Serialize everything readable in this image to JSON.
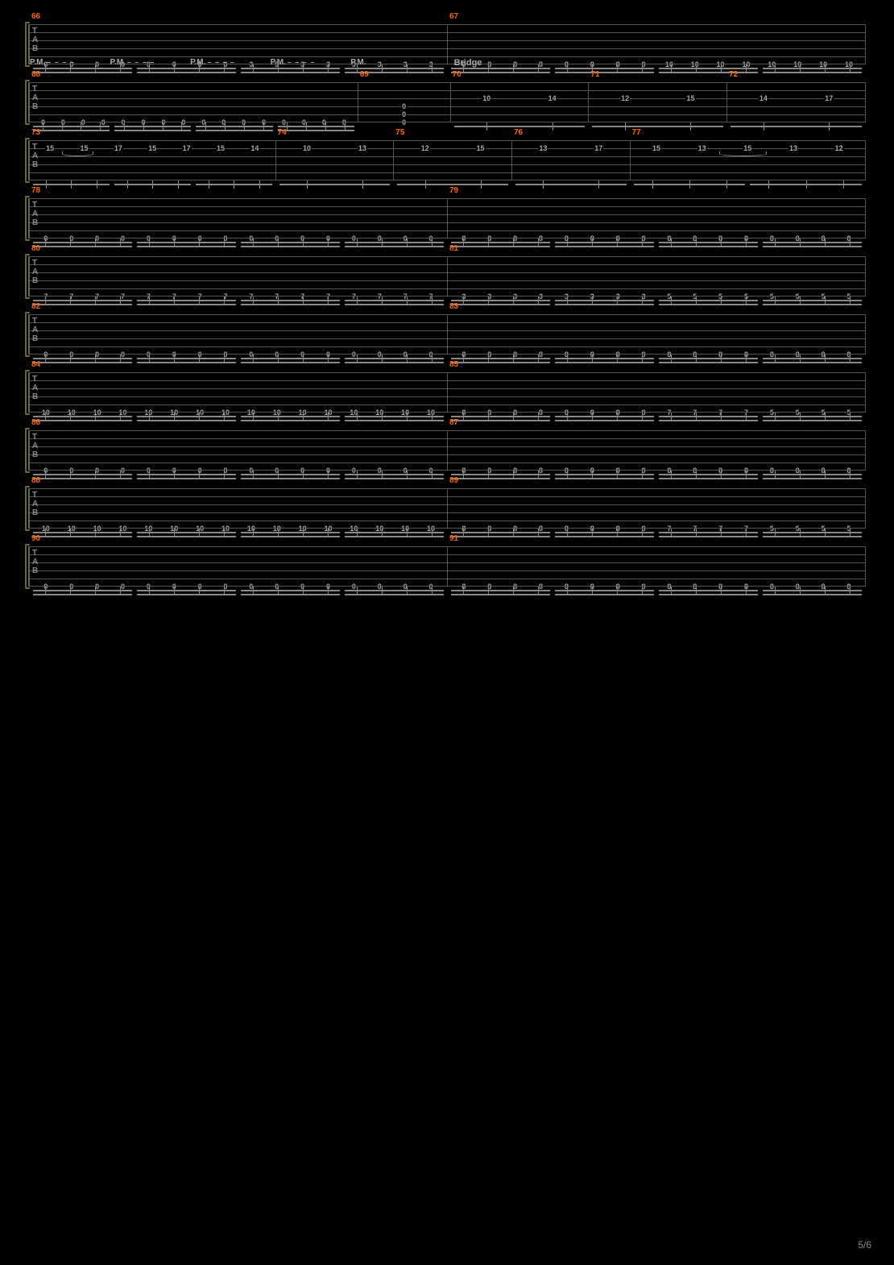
{
  "page_number": "5/6",
  "colors": {
    "background": "#000000",
    "staff_line": "#555555",
    "brace": "#666a3a",
    "measure_number": "#ff6600",
    "text": "#aaaaaa",
    "beam": "#888888"
  },
  "tab_clef": [
    "T",
    "A",
    "B"
  ],
  "pm_label": "P.M.",
  "pm_dashes": "– – – –",
  "section_bridge": "Bridge",
  "systems": [
    {
      "id": "sys1",
      "measures": [
        {
          "num": 66,
          "string": 6,
          "group_size": 4,
          "groups": [
            [
              "0",
              "0",
              "0",
              "0"
            ],
            [
              "0",
              "0",
              "0",
              "0"
            ],
            [
              "3",
              "3",
              "3",
              "3"
            ],
            [
              "3",
              "3",
              "3",
              "3"
            ]
          ]
        },
        {
          "num": 67,
          "string": 6,
          "group_size": 4,
          "groups": [
            [
              "8",
              "8",
              "8",
              "8"
            ],
            [
              "8",
              "8",
              "8",
              "8"
            ],
            [
              "10",
              "10",
              "10",
              "10"
            ],
            [
              "10",
              "10",
              "10",
              "10"
            ]
          ]
        }
      ]
    },
    {
      "id": "sys2",
      "pm": true,
      "measures": [
        {
          "num": 68,
          "string": 6,
          "group_size": 4,
          "groups": [
            [
              "0",
              "0",
              "0",
              "0"
            ],
            [
              "0",
              "0",
              "0",
              "0"
            ],
            [
              "0",
              "0",
              "0",
              "0"
            ],
            [
              "0",
              "0",
              "0",
              "0"
            ]
          ]
        },
        {
          "num": 69,
          "chord": {
            "s4": "0",
            "s5": "0",
            "s6": "0"
          },
          "beams": false,
          "flex": 0.28
        },
        {
          "num": 70,
          "section": "Bridge",
          "string": 3,
          "pairs": [
            [
              "10",
              "14"
            ]
          ],
          "beams": "single",
          "flex": 0.42,
          "vibrato_before": true
        },
        {
          "num": 71,
          "string": 3,
          "pairs": [
            [
              "12",
              "15"
            ]
          ],
          "beams": "single",
          "flex": 0.42
        },
        {
          "num": 72,
          "string": 3,
          "pairs": [
            [
              "14",
              "17"
            ]
          ],
          "beams": "single",
          "flex": 0.42
        }
      ]
    },
    {
      "id": "sys3",
      "vibrato_span": [
        0.28,
        0.97
      ],
      "measures": [
        {
          "num": 73,
          "string": 2,
          "custom": "m73",
          "flex": 1.15
        },
        {
          "num": 74,
          "string": 2,
          "pairs": [
            [
              "10",
              "13"
            ]
          ],
          "beams": "single",
          "flex": 0.55
        },
        {
          "num": 75,
          "string": 2,
          "pairs": [
            [
              "12",
              "15"
            ]
          ],
          "beams": "single",
          "flex": 0.55
        },
        {
          "num": 76,
          "string": 2,
          "pairs": [
            [
              "13",
              "17"
            ]
          ],
          "beams": "single",
          "flex": 0.55
        },
        {
          "num": 77,
          "string": 2,
          "custom": "m77",
          "flex": 1.1
        }
      ]
    },
    {
      "id": "sys4",
      "measures": [
        {
          "num": 78,
          "string": 6,
          "group_size": 4,
          "groups": [
            [
              "0",
              "0",
              "0",
              "0"
            ],
            [
              "0",
              "0",
              "0",
              "0"
            ],
            [
              "0",
              "0",
              "0",
              "0"
            ],
            [
              "0",
              "0",
              "0",
              "0"
            ]
          ]
        },
        {
          "num": 79,
          "string": 6,
          "group_size": 4,
          "groups": [
            [
              "8",
              "8",
              "8",
              "8"
            ],
            [
              "8",
              "8",
              "8",
              "8"
            ],
            [
              "8",
              "8",
              "8",
              "8"
            ],
            [
              "8",
              "8",
              "8",
              "8"
            ]
          ]
        }
      ]
    },
    {
      "id": "sys5",
      "measures": [
        {
          "num": 80,
          "string": 6,
          "group_size": 4,
          "groups": [
            [
              "7",
              "7",
              "7",
              "7"
            ],
            [
              "7",
              "7",
              "7",
              "7"
            ],
            [
              "7",
              "7",
              "7",
              "7"
            ],
            [
              "7",
              "7",
              "7",
              "7"
            ]
          ]
        },
        {
          "num": 81,
          "string": 6,
          "group_size": 4,
          "groups": [
            [
              "3",
              "3",
              "3",
              "3"
            ],
            [
              "3",
              "3",
              "3",
              "3"
            ],
            [
              "5",
              "5",
              "5",
              "5"
            ],
            [
              "5",
              "5",
              "5",
              "5"
            ]
          ]
        }
      ]
    },
    {
      "id": "sys6",
      "measures": [
        {
          "num": 82,
          "string": 6,
          "group_size": 4,
          "groups": [
            [
              "0",
              "0",
              "0",
              "0"
            ],
            [
              "0",
              "0",
              "0",
              "0"
            ],
            [
              "0",
              "0",
              "0",
              "0"
            ],
            [
              "0",
              "0",
              "0",
              "0"
            ]
          ]
        },
        {
          "num": 83,
          "string": 6,
          "group_size": 4,
          "groups": [
            [
              "8",
              "8",
              "8",
              "8"
            ],
            [
              "8",
              "8",
              "8",
              "8"
            ],
            [
              "8",
              "8",
              "8",
              "8"
            ],
            [
              "8",
              "8",
              "8",
              "8"
            ]
          ]
        }
      ]
    },
    {
      "id": "sys7",
      "measures": [
        {
          "num": 84,
          "string": 6,
          "group_size": 4,
          "groups": [
            [
              "10",
              "10",
              "10",
              "10"
            ],
            [
              "10",
              "10",
              "10",
              "10"
            ],
            [
              "10",
              "10",
              "10",
              "10"
            ],
            [
              "10",
              "10",
              "10",
              "10"
            ]
          ]
        },
        {
          "num": 85,
          "string": 6,
          "group_size": 4,
          "groups": [
            [
              "8",
              "8",
              "8",
              "8"
            ],
            [
              "8",
              "8",
              "8",
              "8"
            ],
            [
              "7",
              "7",
              "7",
              "7"
            ],
            [
              "5",
              "5",
              "5",
              "5"
            ]
          ]
        }
      ]
    },
    {
      "id": "sys8",
      "measures": [
        {
          "num": 86,
          "string": 6,
          "group_size": 4,
          "groups": [
            [
              "0",
              "0",
              "0",
              "0"
            ],
            [
              "0",
              "0",
              "0",
              "0"
            ],
            [
              "0",
              "0",
              "0",
              "0"
            ],
            [
              "0",
              "0",
              "0",
              "0"
            ]
          ]
        },
        {
          "num": 87,
          "string": 6,
          "group_size": 4,
          "groups": [
            [
              "8",
              "8",
              "8",
              "8"
            ],
            [
              "8",
              "8",
              "8",
              "8"
            ],
            [
              "8",
              "8",
              "8",
              "8"
            ],
            [
              "8",
              "8",
              "8",
              "8"
            ]
          ]
        }
      ]
    },
    {
      "id": "sys9",
      "measures": [
        {
          "num": 88,
          "string": 6,
          "group_size": 4,
          "groups": [
            [
              "10",
              "10",
              "10",
              "10"
            ],
            [
              "10",
              "10",
              "10",
              "10"
            ],
            [
              "10",
              "10",
              "10",
              "10"
            ],
            [
              "10",
              "10",
              "10",
              "10"
            ]
          ]
        },
        {
          "num": 89,
          "string": 6,
          "group_size": 4,
          "groups": [
            [
              "8",
              "8",
              "8",
              "8"
            ],
            [
              "8",
              "8",
              "8",
              "8"
            ],
            [
              "7",
              "7",
              "7",
              "7"
            ],
            [
              "5",
              "5",
              "5",
              "5"
            ]
          ]
        }
      ]
    },
    {
      "id": "sys10",
      "measures": [
        {
          "num": 90,
          "string": 6,
          "group_size": 4,
          "groups": [
            [
              "0",
              "0",
              "0",
              "0"
            ],
            [
              "0",
              "0",
              "0",
              "0"
            ],
            [
              "0",
              "0",
              "0",
              "0"
            ],
            [
              "0",
              "0",
              "0",
              "0"
            ]
          ]
        },
        {
          "num": 91,
          "string": 6,
          "group_size": 4,
          "groups": [
            [
              "8",
              "8",
              "8",
              "8"
            ],
            [
              "8",
              "8",
              "8",
              "8"
            ],
            [
              "8",
              "8",
              "8",
              "8"
            ],
            [
              "8",
              "8",
              "8",
              "8"
            ]
          ]
        }
      ]
    }
  ],
  "m73_notes": [
    {
      "s": 2,
      "f": "15"
    },
    {
      "s": 2,
      "f": "15"
    },
    {
      "s": 2,
      "f": "17"
    },
    {
      "s": 2,
      "f": "15"
    },
    {
      "s": 2,
      "f": "17"
    },
    {
      "s": 2,
      "f": "15"
    },
    {
      "s": 2,
      "f": "14"
    }
  ],
  "m77_notes": [
    {
      "s": 2,
      "f": "15"
    },
    {
      "s": 2,
      "f": "13"
    },
    {
      "s": 2,
      "f": "15"
    },
    {
      "s": 2,
      "f": "13"
    },
    {
      "s": 2,
      "f": "12"
    }
  ]
}
